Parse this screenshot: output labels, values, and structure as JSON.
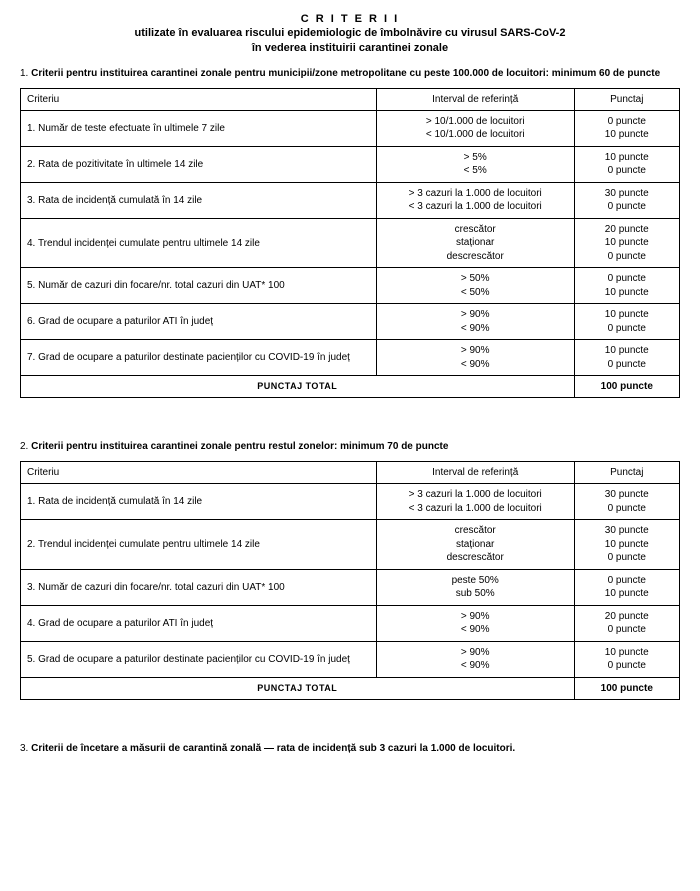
{
  "header": {
    "line1": "C R I T E R I I",
    "line2": "utilizate în evaluarea riscului epidemiologic de îmbolnăvire cu virusul SARS-CoV-2",
    "line3": "în vederea instituirii carantinei zonale"
  },
  "section1": {
    "num": "1. ",
    "heading": "Criterii pentru instituirea carantinei zonale pentru municipii/zone metropolitane cu peste 100.000 de locuitori: minimum 60 de puncte",
    "columns": [
      "Criteriu",
      "Interval de referință",
      "Punctaj"
    ],
    "rows": [
      {
        "crit": "1. Număr de teste efectuate în ultimele 7 zile",
        "ref": "> 10/1.000 de locuitori\n< 10/1.000 de locuitori",
        "pts": "0 puncte\n10 puncte"
      },
      {
        "crit": "2. Rata de pozitivitate în ultimele 14 zile",
        "ref": "> 5%\n< 5%",
        "pts": "10 puncte\n0 puncte"
      },
      {
        "crit": "3. Rata de incidență cumulată în 14 zile",
        "ref": "> 3 cazuri la 1.000 de locuitori\n< 3 cazuri la 1.000 de locuitori",
        "pts": "30 puncte\n0 puncte"
      },
      {
        "crit": "4. Trendul incidenței cumulate pentru ultimele 14 zile",
        "ref": "crescător\nstaționar\ndescrescător",
        "pts": "20 puncte\n10 puncte\n0 puncte"
      },
      {
        "crit": "5. Număr de cazuri din focare/nr. total cazuri din UAT* 100",
        "ref": "> 50%\n< 50%",
        "pts": "0 puncte\n10 puncte"
      },
      {
        "crit": "6. Grad de ocupare a paturilor ATI în județ",
        "ref": "> 90%\n< 90%",
        "pts": "10 puncte\n0 puncte"
      },
      {
        "crit": "7. Grad de ocupare a paturilor destinate pacienților cu COVID-19 în județ",
        "ref": "> 90%\n< 90%",
        "pts": "10 puncte\n0 puncte"
      }
    ],
    "total_label": "PUNCTAJ TOTAL",
    "total_value": "100 puncte"
  },
  "section2": {
    "num": "2. ",
    "heading": "Criterii pentru instituirea carantinei zonale pentru restul zonelor: minimum 70 de puncte",
    "columns": [
      "Criteriu",
      "Interval de referință",
      "Punctaj"
    ],
    "rows": [
      {
        "crit": "1. Rata de incidență cumulată în 14 zile",
        "ref": "> 3 cazuri la 1.000 de locuitori\n< 3 cazuri la 1.000 de locuitori",
        "pts": "30 puncte\n0 puncte"
      },
      {
        "crit": "2. Trendul incidenței cumulate pentru ultimele 14 zile",
        "ref": "crescător\nstaționar\ndescrescător",
        "pts": "30 puncte\n10 puncte\n0 puncte"
      },
      {
        "crit": "3. Număr de cazuri din focare/nr. total cazuri din UAT* 100",
        "ref": "peste 50%\nsub 50%",
        "pts": "0 puncte\n10 puncte"
      },
      {
        "crit": "4. Grad de ocupare a paturilor ATI în județ",
        "ref": "> 90%\n< 90%",
        "pts": "20 puncte\n0 puncte"
      },
      {
        "crit": "5. Grad de ocupare a paturilor destinate pacienților cu COVID-19 în județ",
        "ref": "> 90%\n< 90%",
        "pts": "10 puncte\n0 puncte"
      }
    ],
    "total_label": "PUNCTAJ TOTAL",
    "total_value": "100 puncte"
  },
  "section3": {
    "num": "3. ",
    "heading": "Criterii de încetare a măsurii de carantină zonală — rata de incidență sub 3 cazuri la 1.000 de locuitori."
  },
  "styling": {
    "background_color": "#ffffff",
    "text_color": "#000000",
    "border_color": "#000000",
    "font_family": "Arial",
    "base_font_size_pt": 10
  }
}
